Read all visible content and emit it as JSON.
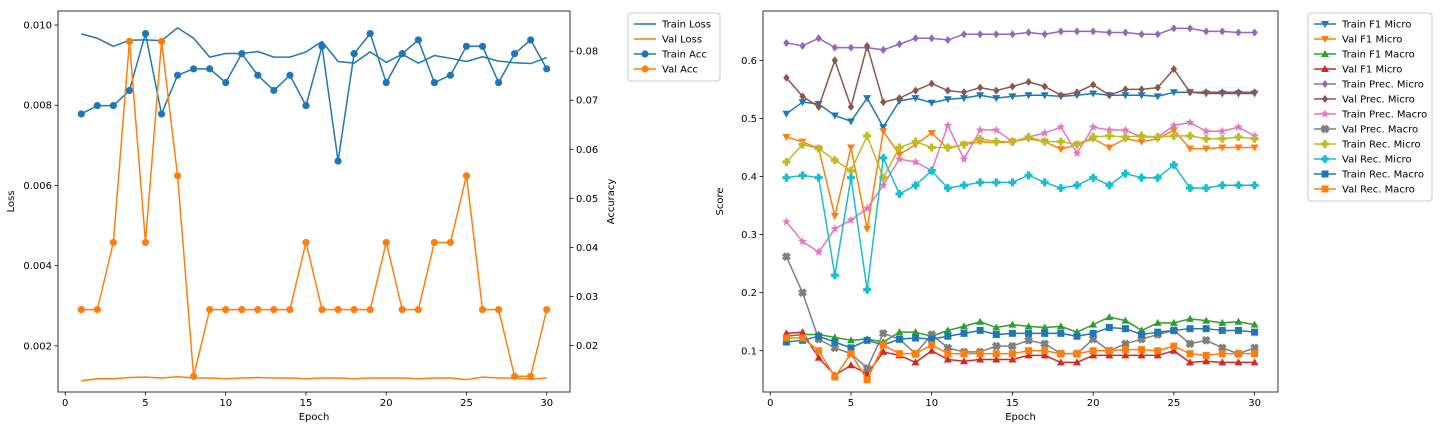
{
  "chart_data": [
    {
      "type": "line",
      "xlabel": "Epoch",
      "ylabel": "Loss",
      "y2label": "Accuracy",
      "xlim": [
        -0.45,
        31.45
      ],
      "xticks": [
        0,
        5,
        10,
        15,
        20,
        25,
        30
      ],
      "ylim": [
        0.00085,
        0.01035
      ],
      "yticks": [
        0.002,
        0.004,
        0.006,
        0.008,
        0.01
      ],
      "ytick_labels": [
        "0.002",
        "0.004",
        "0.006",
        "0.008",
        "0.010"
      ],
      "y2lim": [
        0.0105,
        0.0882
      ],
      "y2ticks": [
        0.02,
        0.03,
        0.04,
        0.05,
        0.06,
        0.07,
        0.08
      ],
      "y2tick_labels": [
        "0.02",
        "0.03",
        "0.04",
        "0.05",
        "0.06",
        "0.07",
        "0.08"
      ],
      "legend_position": "outside-right",
      "x": [
        1,
        2,
        3,
        4,
        5,
        6,
        7,
        8,
        9,
        10,
        11,
        12,
        13,
        14,
        15,
        16,
        17,
        18,
        19,
        20,
        21,
        22,
        23,
        24,
        25,
        26,
        27,
        28,
        29,
        30
      ],
      "series": [
        {
          "name": "Train Loss",
          "axis": "left",
          "marker": "none",
          "color": "#1f77b4",
          "values": [
            0.00978,
            0.00967,
            0.00947,
            0.00962,
            0.00963,
            0.00961,
            0.00993,
            0.00967,
            0.0092,
            0.00929,
            0.00929,
            0.00934,
            0.0092,
            0.0092,
            0.00933,
            0.00959,
            0.00909,
            0.00905,
            0.00933,
            0.00907,
            0.00927,
            0.00905,
            0.00924,
            0.00917,
            0.00909,
            0.00921,
            0.0091,
            0.00906,
            0.00904,
            0.00919
          ]
        },
        {
          "name": "Val Loss",
          "axis": "left",
          "marker": "none",
          "color": "#ff7f0e",
          "values": [
            0.00113,
            0.00118,
            0.00118,
            0.00121,
            0.00122,
            0.0012,
            0.00123,
            0.0012,
            0.0012,
            0.00118,
            0.0012,
            0.00121,
            0.0012,
            0.0012,
            0.00118,
            0.0012,
            0.0012,
            0.00118,
            0.0012,
            0.0012,
            0.0012,
            0.00118,
            0.0012,
            0.0012,
            0.00116,
            0.00122,
            0.0012,
            0.0012,
            0.00117,
            0.0012
          ]
        },
        {
          "name": "Train Acc",
          "axis": "right",
          "marker": "circle",
          "color": "#1f77b4",
          "values": [
            0.0672,
            0.0689,
            0.0689,
            0.072,
            0.0836,
            0.0672,
            0.0751,
            0.0764,
            0.0764,
            0.0736,
            0.0795,
            0.0751,
            0.072,
            0.0751,
            0.0689,
            0.081,
            0.0576,
            0.0795,
            0.0836,
            0.0736,
            0.0795,
            0.0823,
            0.0736,
            0.0751,
            0.081,
            0.081,
            0.0736,
            0.0795,
            0.0823,
            0.0764
          ]
        },
        {
          "name": "Val Acc",
          "axis": "right",
          "marker": "circle",
          "color": "#ff7f0e",
          "values": [
            0.0273,
            0.0273,
            0.041,
            0.082,
            0.041,
            0.082,
            0.0546,
            0.0137,
            0.0273,
            0.0273,
            0.0273,
            0.0273,
            0.0273,
            0.0273,
            0.041,
            0.0273,
            0.0273,
            0.0273,
            0.0273,
            0.041,
            0.0273,
            0.0273,
            0.041,
            0.041,
            0.0546,
            0.0273,
            0.0273,
            0.0137,
            0.0137,
            0.0273
          ]
        }
      ]
    },
    {
      "type": "line",
      "xlabel": "Epoch",
      "ylabel": "Score",
      "xlim": [
        -0.45,
        31.45
      ],
      "xticks": [
        0,
        5,
        10,
        15,
        20,
        25,
        30
      ],
      "ylim": [
        0.029,
        0.685
      ],
      "yticks": [
        0.1,
        0.2,
        0.3,
        0.4,
        0.5,
        0.6
      ],
      "ytick_labels": [
        "0.1",
        "0.2",
        "0.3",
        "0.4",
        "0.5",
        "0.6"
      ],
      "legend_position": "outside-right",
      "x": [
        1,
        2,
        3,
        4,
        5,
        6,
        7,
        8,
        9,
        10,
        11,
        12,
        13,
        14,
        15,
        16,
        17,
        18,
        19,
        20,
        21,
        22,
        23,
        24,
        25,
        26,
        27,
        28,
        29,
        30
      ],
      "series": [
        {
          "name": "Train F1 Micro",
          "marker": "triangle-down",
          "color": "#1f77b4",
          "values": [
            0.508,
            0.528,
            0.525,
            0.505,
            0.495,
            0.535,
            0.485,
            0.53,
            0.535,
            0.527,
            0.533,
            0.535,
            0.54,
            0.535,
            0.538,
            0.54,
            0.54,
            0.538,
            0.54,
            0.543,
            0.54,
            0.54,
            0.54,
            0.538,
            0.545,
            0.545,
            0.543,
            0.543,
            0.543,
            0.543
          ]
        },
        {
          "name": "Val F1 Micro",
          "marker": "triangle-down",
          "color": "#ff7f0e",
          "values": [
            0.468,
            0.46,
            0.448,
            0.332,
            0.45,
            0.31,
            0.478,
            0.438,
            0.455,
            0.475,
            0.448,
            0.455,
            0.46,
            0.458,
            0.46,
            0.465,
            0.46,
            0.447,
            0.455,
            0.465,
            0.45,
            0.465,
            0.46,
            0.465,
            0.48,
            0.448,
            0.448,
            0.45,
            0.45,
            0.45
          ]
        },
        {
          "name": "Train F1 Macro",
          "marker": "triangle-up",
          "color": "#2ca02c",
          "values": [
            0.125,
            0.128,
            0.128,
            0.123,
            0.118,
            0.12,
            0.115,
            0.132,
            0.132,
            0.125,
            0.135,
            0.142,
            0.15,
            0.14,
            0.145,
            0.142,
            0.14,
            0.142,
            0.132,
            0.145,
            0.158,
            0.152,
            0.135,
            0.148,
            0.148,
            0.155,
            0.152,
            0.148,
            0.15,
            0.145
          ]
        },
        {
          "name": "Val F1 Micro",
          "marker": "triangle-up",
          "color": "#d62728",
          "values": [
            0.13,
            0.132,
            0.088,
            0.058,
            0.075,
            0.06,
            0.098,
            0.092,
            0.08,
            0.1,
            0.085,
            0.082,
            0.085,
            0.085,
            0.085,
            0.092,
            0.092,
            0.08,
            0.08,
            0.092,
            0.092,
            0.092,
            0.092,
            0.092,
            0.1,
            0.08,
            0.082,
            0.08,
            0.08,
            0.08
          ]
        },
        {
          "name": "Train Prec. Micro",
          "marker": "diamond",
          "color": "#9467bd",
          "values": [
            0.63,
            0.625,
            0.638,
            0.622,
            0.622,
            0.622,
            0.618,
            0.628,
            0.638,
            0.638,
            0.635,
            0.645,
            0.645,
            0.645,
            0.645,
            0.648,
            0.645,
            0.65,
            0.65,
            0.65,
            0.648,
            0.648,
            0.645,
            0.645,
            0.655,
            0.655,
            0.65,
            0.65,
            0.648,
            0.648
          ]
        },
        {
          "name": "Val Prec. Micro",
          "marker": "diamond",
          "color": "#8c564b",
          "values": [
            0.57,
            0.538,
            0.52,
            0.6,
            0.52,
            0.625,
            0.528,
            0.535,
            0.548,
            0.56,
            0.548,
            0.545,
            0.553,
            0.548,
            0.555,
            0.563,
            0.555,
            0.54,
            0.545,
            0.558,
            0.54,
            0.55,
            0.55,
            0.553,
            0.585,
            0.545,
            0.545,
            0.545,
            0.545,
            0.545
          ]
        },
        {
          "name": "Train Prec. Macro",
          "marker": "star",
          "color": "#e377c2",
          "values": [
            0.322,
            0.288,
            0.27,
            0.31,
            0.325,
            0.345,
            0.385,
            0.43,
            0.425,
            0.41,
            0.488,
            0.43,
            0.48,
            0.48,
            0.46,
            0.468,
            0.475,
            0.485,
            0.44,
            0.485,
            0.48,
            0.48,
            0.468,
            0.468,
            0.488,
            0.493,
            0.478,
            0.478,
            0.485,
            0.47
          ]
        },
        {
          "name": "Val Prec. Macro",
          "marker": "x",
          "color": "#7f7f7f",
          "values": [
            0.262,
            0.2,
            0.12,
            0.105,
            0.095,
            0.07,
            0.13,
            0.12,
            0.095,
            0.128,
            0.105,
            0.098,
            0.098,
            0.108,
            0.108,
            0.118,
            0.112,
            0.095,
            0.095,
            0.12,
            0.1,
            0.112,
            0.12,
            0.128,
            0.135,
            0.112,
            0.118,
            0.105,
            0.095,
            0.105
          ]
        },
        {
          "name": "Train Rec. Micro",
          "marker": "plus",
          "color": "#bcbd22",
          "values": [
            0.425,
            0.455,
            0.448,
            0.428,
            0.41,
            0.47,
            0.398,
            0.45,
            0.46,
            0.45,
            0.45,
            0.455,
            0.465,
            0.46,
            0.46,
            0.468,
            0.46,
            0.46,
            0.455,
            0.468,
            0.47,
            0.468,
            0.47,
            0.468,
            0.47,
            0.47,
            0.465,
            0.465,
            0.468,
            0.465
          ]
        },
        {
          "name": "Val Rec. Micro",
          "marker": "plus",
          "color": "#17becf",
          "values": [
            0.398,
            0.402,
            0.398,
            0.23,
            0.398,
            0.205,
            0.432,
            0.37,
            0.385,
            0.41,
            0.38,
            0.385,
            0.39,
            0.39,
            0.39,
            0.402,
            0.39,
            0.38,
            0.385,
            0.398,
            0.385,
            0.405,
            0.398,
            0.398,
            0.42,
            0.38,
            0.38,
            0.385,
            0.385,
            0.385
          ]
        },
        {
          "name": "Train Rec. Macro",
          "marker": "square",
          "color": "#1f77b4",
          "values": [
            0.115,
            0.118,
            0.125,
            0.115,
            0.105,
            0.118,
            0.11,
            0.12,
            0.122,
            0.12,
            0.125,
            0.13,
            0.135,
            0.128,
            0.13,
            0.13,
            0.13,
            0.13,
            0.125,
            0.13,
            0.14,
            0.138,
            0.128,
            0.132,
            0.135,
            0.138,
            0.138,
            0.135,
            0.135,
            0.132
          ]
        },
        {
          "name": "Val Rec. Macro",
          "marker": "square",
          "color": "#ff7f0e",
          "values": [
            0.122,
            0.122,
            0.1,
            0.055,
            0.095,
            0.05,
            0.11,
            0.095,
            0.095,
            0.11,
            0.095,
            0.095,
            0.095,
            0.095,
            0.095,
            0.1,
            0.1,
            0.095,
            0.095,
            0.1,
            0.1,
            0.102,
            0.102,
            0.1,
            0.108,
            0.095,
            0.092,
            0.095,
            0.095,
            0.095
          ]
        }
      ]
    }
  ]
}
